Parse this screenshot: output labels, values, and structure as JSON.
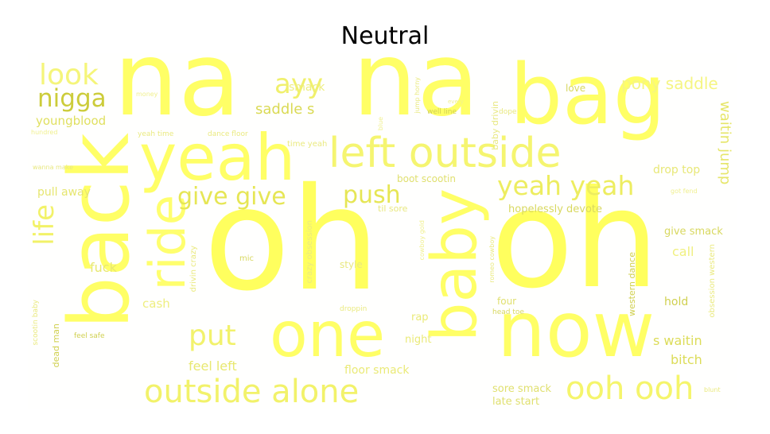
{
  "title": "Neutral",
  "colors": {
    "background": "#ffffff",
    "word_palette": [
      "#ffff66",
      "#f5f570",
      "#e8e85a",
      "#d7d74a",
      "#c9c93a"
    ]
  },
  "words": {
    "oh1": "oh",
    "oh2": "oh",
    "na1": "na",
    "na2": "na",
    "bag": "bag",
    "back": "back",
    "yeah": "yeah",
    "now": "now",
    "one": "one",
    "baby": "baby",
    "ride": "ride",
    "left_outside": "left outside",
    "outside_alone": "outside alone",
    "ooh_ooh": "ooh ooh",
    "yeah_yeah": "yeah yeah",
    "give_give": "give give",
    "push": "push",
    "put": "put",
    "ayy": "ayy",
    "look": "look",
    "nigga": "nigga",
    "life": "life",
    "pony_saddle": "pony saddle",
    "waitin_jump": "waitin jump",
    "saddle_s": "saddle s",
    "smack": "smack",
    "youngblood": "youngblood",
    "pull_away": "pull away",
    "fuck": "fuck",
    "cash": "cash",
    "feel_left": "feel left",
    "floor_smack": "floor smack",
    "sore_smack": "sore smack",
    "late_start": "late start",
    "hopelessly_devote": "hopelessly devote",
    "give_smack": "give smack",
    "drop_top": "drop top",
    "boot_scootin": "boot scootin",
    "call": "call",
    "hold": "hold",
    "bitch": "bitch",
    "s_waitin": "s waitin",
    "love": "love",
    "four": "four",
    "night": "night",
    "rap": "rap",
    "style": "style",
    "mic": "mic",
    "dead_man": "dead man",
    "feel_safe": "feel safe",
    "western_dance": "western dance",
    "head_toe": "head toe",
    "baby_drivin": "baby drivin",
    "well_line": "well line",
    "dance_floor": "dance floor",
    "yeah_time": "yeah time",
    "time_yeah": "time yeah",
    "til_sore": "til sore",
    "dope": "dope",
    "wanna_make": "wanna make",
    "scootin_baby": "scootin baby",
    "crazy_obsession": "crazy obsession",
    "drivin_crazy": "drivin crazy",
    "obsession_western": "obsession western",
    "romeo_cowboy": "romeo cowboy",
    "droppin": "droppin",
    "jump_horny": "jump horny",
    "blunt": "blunt",
    "money": "money",
    "hundred": "hundred",
    "every": "every",
    "blue": "blue",
    "got_fend": "got fend",
    "cowboy_gold": "cowboy gold"
  }
}
